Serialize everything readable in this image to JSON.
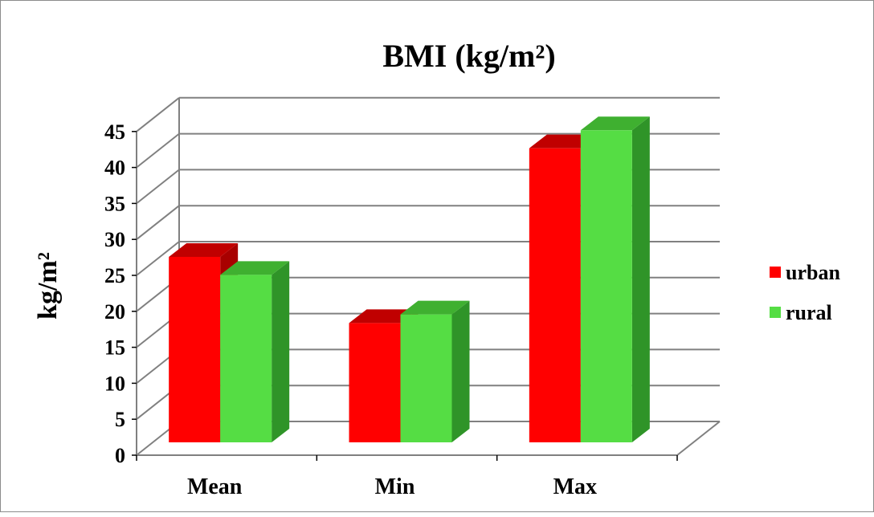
{
  "chart_data": {
    "type": "bar",
    "title": "BMI (kg/m²)",
    "xlabel": "",
    "ylabel": "kg/m²",
    "categories": [
      "Mean",
      "Min",
      "Max"
    ],
    "series": [
      {
        "name": "urban",
        "values": [
          26.9,
          17.7,
          42.0
        ]
      },
      {
        "name": "rural",
        "values": [
          24.4,
          18.9,
          44.5
        ]
      }
    ],
    "ylim": [
      0,
      45
    ],
    "yticks": [
      0,
      5,
      10,
      15,
      20,
      25,
      30,
      35,
      40,
      45
    ],
    "grid": true,
    "legend": "right",
    "three_d": true
  },
  "colors": {
    "urban_front": "#ff0000",
    "urban_top": "#c00000",
    "urban_side": "#a80000",
    "rural_front": "#55dd44",
    "rural_top": "#3fb030",
    "rural_side": "#2f9428",
    "gridline": "#808080",
    "border": "#8c8c8c"
  }
}
